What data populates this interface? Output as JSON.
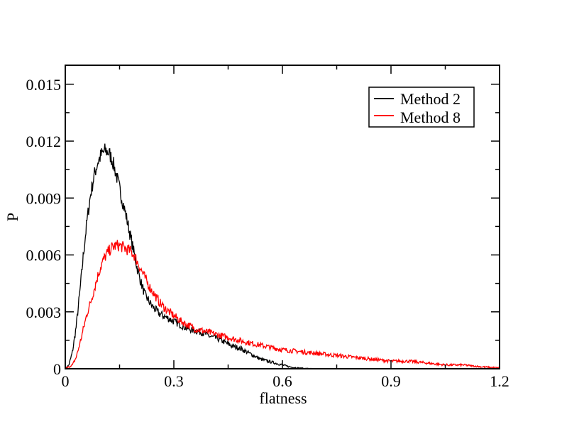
{
  "chart_data": {
    "type": "line",
    "title": "",
    "xlabel": "flatness",
    "ylabel": "P",
    "xlim": [
      0,
      1.2
    ],
    "ylim": [
      0,
      0.016
    ],
    "x_ticks": [
      0,
      0.3,
      0.6,
      0.9,
      1.2
    ],
    "x_tick_labels": [
      "0",
      "0.3",
      "0.6",
      "0.9",
      "1.2"
    ],
    "y_ticks": [
      0,
      0.003,
      0.006,
      0.009,
      0.012,
      0.015
    ],
    "y_tick_labels": [
      "0",
      "0.003",
      "0.006",
      "0.009",
      "0.012",
      "0.015"
    ],
    "grid": false,
    "legend_position": "top-right",
    "series": [
      {
        "name": "Method 2",
        "color": "#000000",
        "points": [
          [
            0.0,
            0
          ],
          [
            0.01,
            0.0002
          ],
          [
            0.02,
            0.0009
          ],
          [
            0.03,
            0.0022
          ],
          [
            0.04,
            0.004
          ],
          [
            0.05,
            0.006
          ],
          [
            0.06,
            0.0078
          ],
          [
            0.07,
            0.0092
          ],
          [
            0.08,
            0.0102
          ],
          [
            0.09,
            0.0109
          ],
          [
            0.1,
            0.0113
          ],
          [
            0.11,
            0.0115
          ],
          [
            0.12,
            0.0114
          ],
          [
            0.13,
            0.011
          ],
          [
            0.14,
            0.0103
          ],
          [
            0.15,
            0.0095
          ],
          [
            0.16,
            0.0087
          ],
          [
            0.17,
            0.0079
          ],
          [
            0.18,
            0.007
          ],
          [
            0.19,
            0.0061
          ],
          [
            0.2,
            0.0052
          ],
          [
            0.21,
            0.0045
          ],
          [
            0.22,
            0.0039
          ],
          [
            0.23,
            0.0036
          ],
          [
            0.24,
            0.0033
          ],
          [
            0.25,
            0.0031
          ],
          [
            0.26,
            0.0029
          ],
          [
            0.28,
            0.0027
          ],
          [
            0.3,
            0.0025
          ],
          [
            0.32,
            0.0023
          ],
          [
            0.34,
            0.0021
          ],
          [
            0.36,
            0.002
          ],
          [
            0.38,
            0.0019
          ],
          [
            0.4,
            0.0017
          ],
          [
            0.42,
            0.0016
          ],
          [
            0.44,
            0.0014
          ],
          [
            0.46,
            0.0012
          ],
          [
            0.48,
            0.0011
          ],
          [
            0.5,
            0.0009
          ],
          [
            0.52,
            0.0007
          ],
          [
            0.54,
            0.0005
          ],
          [
            0.56,
            0.0004
          ],
          [
            0.58,
            0.0003
          ],
          [
            0.6,
            0.0002
          ],
          [
            0.62,
            0.0001
          ],
          [
            0.64,
            5e-05
          ],
          [
            0.66,
            2e-05
          ],
          [
            0.7,
            0
          ]
        ]
      },
      {
        "name": "Method 8",
        "color": "#ff0000",
        "points": [
          [
            0.0,
            0
          ],
          [
            0.02,
            0.0002
          ],
          [
            0.03,
            0.0006
          ],
          [
            0.04,
            0.0013
          ],
          [
            0.05,
            0.0021
          ],
          [
            0.06,
            0.0029
          ],
          [
            0.07,
            0.0035
          ],
          [
            0.08,
            0.0042
          ],
          [
            0.09,
            0.0049
          ],
          [
            0.1,
            0.0055
          ],
          [
            0.11,
            0.0059
          ],
          [
            0.12,
            0.0062
          ],
          [
            0.13,
            0.0064
          ],
          [
            0.14,
            0.0065
          ],
          [
            0.15,
            0.0065
          ],
          [
            0.16,
            0.0064
          ],
          [
            0.17,
            0.0063
          ],
          [
            0.18,
            0.0062
          ],
          [
            0.19,
            0.006
          ],
          [
            0.2,
            0.0056
          ],
          [
            0.21,
            0.0052
          ],
          [
            0.22,
            0.0048
          ],
          [
            0.23,
            0.0044
          ],
          [
            0.24,
            0.0041
          ],
          [
            0.25,
            0.0038
          ],
          [
            0.26,
            0.0035
          ],
          [
            0.27,
            0.0033
          ],
          [
            0.28,
            0.0031
          ],
          [
            0.3,
            0.0028
          ],
          [
            0.32,
            0.0025
          ],
          [
            0.34,
            0.0023
          ],
          [
            0.36,
            0.0021
          ],
          [
            0.38,
            0.002
          ],
          [
            0.4,
            0.0019
          ],
          [
            0.42,
            0.0018
          ],
          [
            0.44,
            0.0017
          ],
          [
            0.46,
            0.0016
          ],
          [
            0.48,
            0.0015
          ],
          [
            0.5,
            0.0014
          ],
          [
            0.55,
            0.0012
          ],
          [
            0.6,
            0.001
          ],
          [
            0.65,
            0.0009
          ],
          [
            0.7,
            0.0008
          ],
          [
            0.75,
            0.0007
          ],
          [
            0.8,
            0.0006
          ],
          [
            0.85,
            0.0005
          ],
          [
            0.9,
            0.0004
          ],
          [
            0.95,
            0.0004
          ],
          [
            1.0,
            0.0003
          ],
          [
            1.05,
            0.0002
          ],
          [
            1.1,
            0.0002
          ],
          [
            1.15,
            0.0001
          ],
          [
            1.2,
            5e-05
          ]
        ]
      }
    ]
  }
}
